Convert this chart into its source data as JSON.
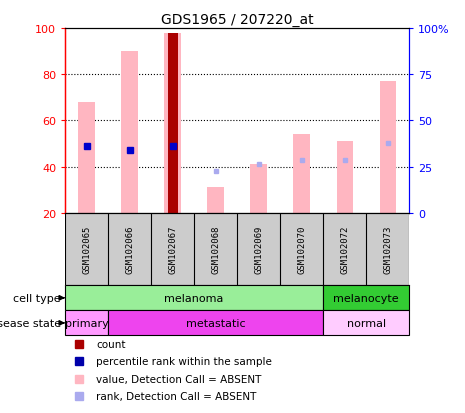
{
  "title": "GDS1965 / 207220_at",
  "samples": [
    "GSM102065",
    "GSM102066",
    "GSM102067",
    "GSM102068",
    "GSM102069",
    "GSM102070",
    "GSM102072",
    "GSM102073"
  ],
  "value_bars": [
    68,
    90,
    98,
    31,
    41,
    54,
    51,
    77
  ],
  "rank_dots": [
    49,
    47,
    49,
    38,
    41,
    43,
    43,
    50
  ],
  "count_bar_idx": 2,
  "count_bar_val": 98,
  "percentile_idxs": [
    0,
    1,
    2
  ],
  "percentile_vals": [
    49,
    47,
    49
  ],
  "ylim_left": [
    20,
    100
  ],
  "ylim_right": [
    0,
    100
  ],
  "yticks_left": [
    20,
    40,
    60,
    80,
    100
  ],
  "yticks_right": [
    0,
    25,
    50,
    75,
    100
  ],
  "ytick_labels_right": [
    "0",
    "25",
    "50",
    "75",
    "100%"
  ],
  "ytick_labels_left": [
    "20",
    "40",
    "60",
    "80",
    "100"
  ],
  "cell_type_groups": [
    {
      "label": "melanoma",
      "start": 0,
      "end": 6,
      "color": "#99EE99"
    },
    {
      "label": "melanocyte",
      "start": 6,
      "end": 8,
      "color": "#33CC33"
    }
  ],
  "disease_state_groups": [
    {
      "label": "primary",
      "start": 0,
      "end": 1,
      "color": "#FF99FF"
    },
    {
      "label": "metastatic",
      "start": 1,
      "end": 6,
      "color": "#EE44EE"
    },
    {
      "label": "normal",
      "start": 6,
      "end": 8,
      "color": "#FFCCFF"
    }
  ],
  "bar_color_value": "#FFB6C1",
  "bar_color_count": "#AA0000",
  "dot_color_rank": "#AAAAEE",
  "dot_color_percentile": "#0000CC",
  "bg_color": "#FFFFFF",
  "sample_box_color": "#CCCCCC",
  "legend_colors": [
    "#AA0000",
    "#0000AA",
    "#FFB6C1",
    "#AAAAEE"
  ],
  "legend_labels": [
    "count",
    "percentile rank within the sample",
    "value, Detection Call = ABSENT",
    "rank, Detection Call = ABSENT"
  ]
}
